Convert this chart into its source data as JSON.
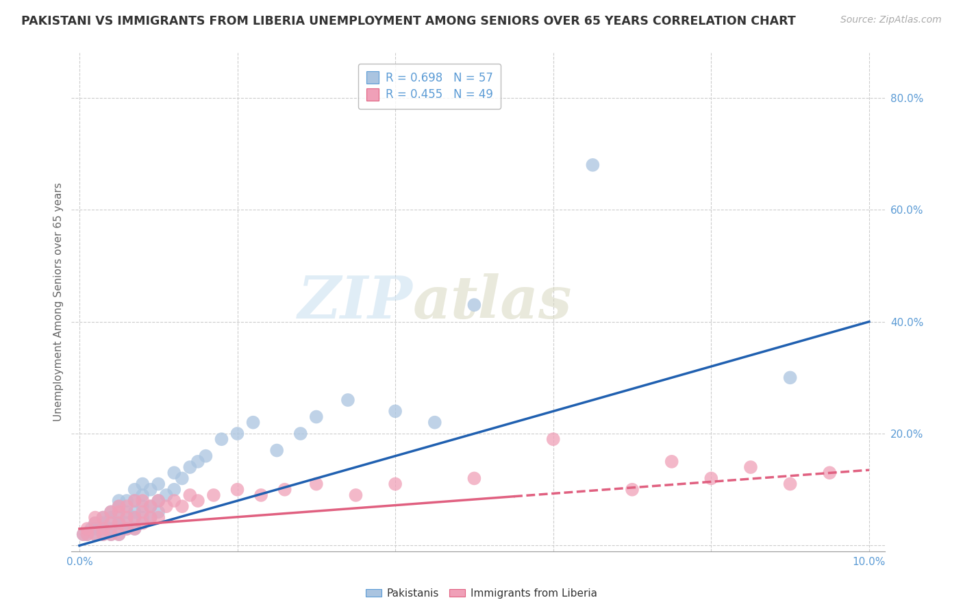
{
  "title": "PAKISTANI VS IMMIGRANTS FROM LIBERIA UNEMPLOYMENT AMONG SENIORS OVER 65 YEARS CORRELATION CHART",
  "source": "Source: ZipAtlas.com",
  "ylabel": "Unemployment Among Seniors over 65 years",
  "xlim": [
    -0.001,
    0.102
  ],
  "ylim": [
    -0.01,
    0.88
  ],
  "xticks": [
    0.0,
    0.02,
    0.04,
    0.06,
    0.08,
    0.1
  ],
  "yticks": [
    0.0,
    0.2,
    0.4,
    0.6,
    0.8
  ],
  "r_pakistani": 0.698,
  "n_pakistani": 57,
  "r_liberia": 0.455,
  "n_liberia": 49,
  "pakistani_color": "#aac4e0",
  "liberia_color": "#f0a0b8",
  "line_pakistani_color": "#2060b0",
  "line_liberia_color": "#e06080",
  "watermark_zip": "ZIP",
  "watermark_atlas": "atlas",
  "legend_label_pakistani": "Pakistanis",
  "legend_label_liberia": "Immigrants from Liberia",
  "pakistani_x": [
    0.0005,
    0.001,
    0.0015,
    0.002,
    0.002,
    0.002,
    0.003,
    0.003,
    0.003,
    0.003,
    0.004,
    0.004,
    0.004,
    0.004,
    0.005,
    0.005,
    0.005,
    0.005,
    0.005,
    0.006,
    0.006,
    0.006,
    0.006,
    0.007,
    0.007,
    0.007,
    0.007,
    0.007,
    0.008,
    0.008,
    0.008,
    0.008,
    0.009,
    0.009,
    0.009,
    0.01,
    0.01,
    0.01,
    0.011,
    0.012,
    0.012,
    0.013,
    0.014,
    0.015,
    0.016,
    0.018,
    0.02,
    0.022,
    0.025,
    0.028,
    0.03,
    0.034,
    0.04,
    0.045,
    0.05,
    0.065,
    0.09
  ],
  "pakistani_y": [
    0.02,
    0.02,
    0.03,
    0.02,
    0.03,
    0.04,
    0.02,
    0.03,
    0.04,
    0.05,
    0.02,
    0.03,
    0.05,
    0.06,
    0.02,
    0.04,
    0.05,
    0.07,
    0.08,
    0.03,
    0.04,
    0.06,
    0.08,
    0.03,
    0.05,
    0.06,
    0.08,
    0.1,
    0.05,
    0.07,
    0.09,
    0.11,
    0.05,
    0.07,
    0.1,
    0.06,
    0.08,
    0.11,
    0.09,
    0.1,
    0.13,
    0.12,
    0.14,
    0.15,
    0.16,
    0.19,
    0.2,
    0.22,
    0.17,
    0.2,
    0.23,
    0.26,
    0.24,
    0.22,
    0.43,
    0.68,
    0.3
  ],
  "liberia_x": [
    0.0005,
    0.001,
    0.001,
    0.002,
    0.002,
    0.002,
    0.003,
    0.003,
    0.003,
    0.004,
    0.004,
    0.004,
    0.005,
    0.005,
    0.005,
    0.005,
    0.006,
    0.006,
    0.006,
    0.007,
    0.007,
    0.007,
    0.008,
    0.008,
    0.008,
    0.009,
    0.009,
    0.01,
    0.01,
    0.011,
    0.012,
    0.013,
    0.014,
    0.015,
    0.017,
    0.02,
    0.023,
    0.026,
    0.03,
    0.035,
    0.04,
    0.05,
    0.06,
    0.07,
    0.075,
    0.08,
    0.085,
    0.09,
    0.095
  ],
  "liberia_y": [
    0.02,
    0.02,
    0.03,
    0.02,
    0.04,
    0.05,
    0.02,
    0.03,
    0.05,
    0.02,
    0.04,
    0.06,
    0.02,
    0.04,
    0.06,
    0.07,
    0.03,
    0.05,
    0.07,
    0.03,
    0.05,
    0.08,
    0.04,
    0.06,
    0.08,
    0.05,
    0.07,
    0.05,
    0.08,
    0.07,
    0.08,
    0.07,
    0.09,
    0.08,
    0.09,
    0.1,
    0.09,
    0.1,
    0.11,
    0.09,
    0.11,
    0.12,
    0.19,
    0.1,
    0.15,
    0.12,
    0.14,
    0.11,
    0.13
  ],
  "line_pakistani_x0": 0.0,
  "line_pakistani_y0": 0.0,
  "line_pakistani_x1": 0.1,
  "line_pakistani_y1": 0.4,
  "line_liberia_x0": 0.0,
  "line_liberia_y0": 0.03,
  "line_liberia_x1": 0.1,
  "line_liberia_y1": 0.135
}
